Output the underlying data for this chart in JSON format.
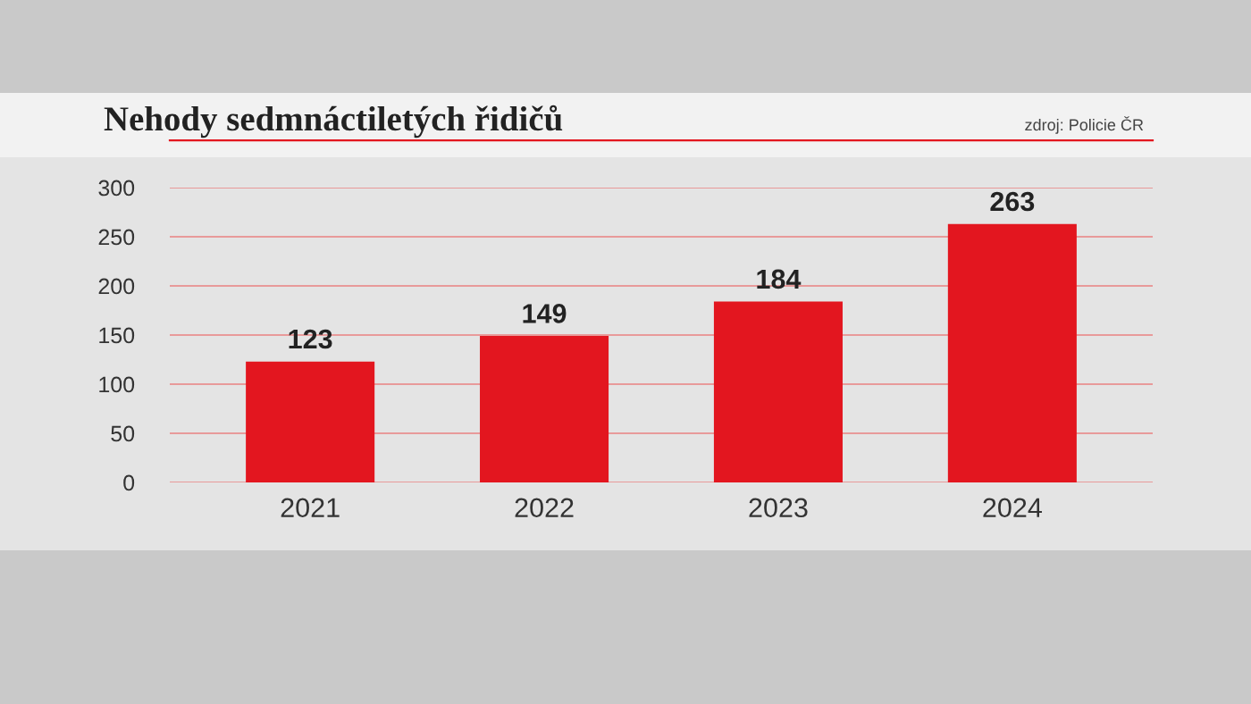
{
  "chart_data": {
    "type": "bar",
    "title": "Nehody sedmnáctiletých řidičů",
    "annotations": [
      "zdroj: Policie ČR"
    ],
    "categories": [
      "2021",
      "2022",
      "2023",
      "2024"
    ],
    "values": [
      123,
      149,
      184,
      263
    ],
    "color": "#e3161f",
    "ylim": [
      0,
      300
    ],
    "yticks": [
      0,
      50,
      100,
      150,
      200,
      250,
      300
    ],
    "grid": "y",
    "data_labels": true
  }
}
